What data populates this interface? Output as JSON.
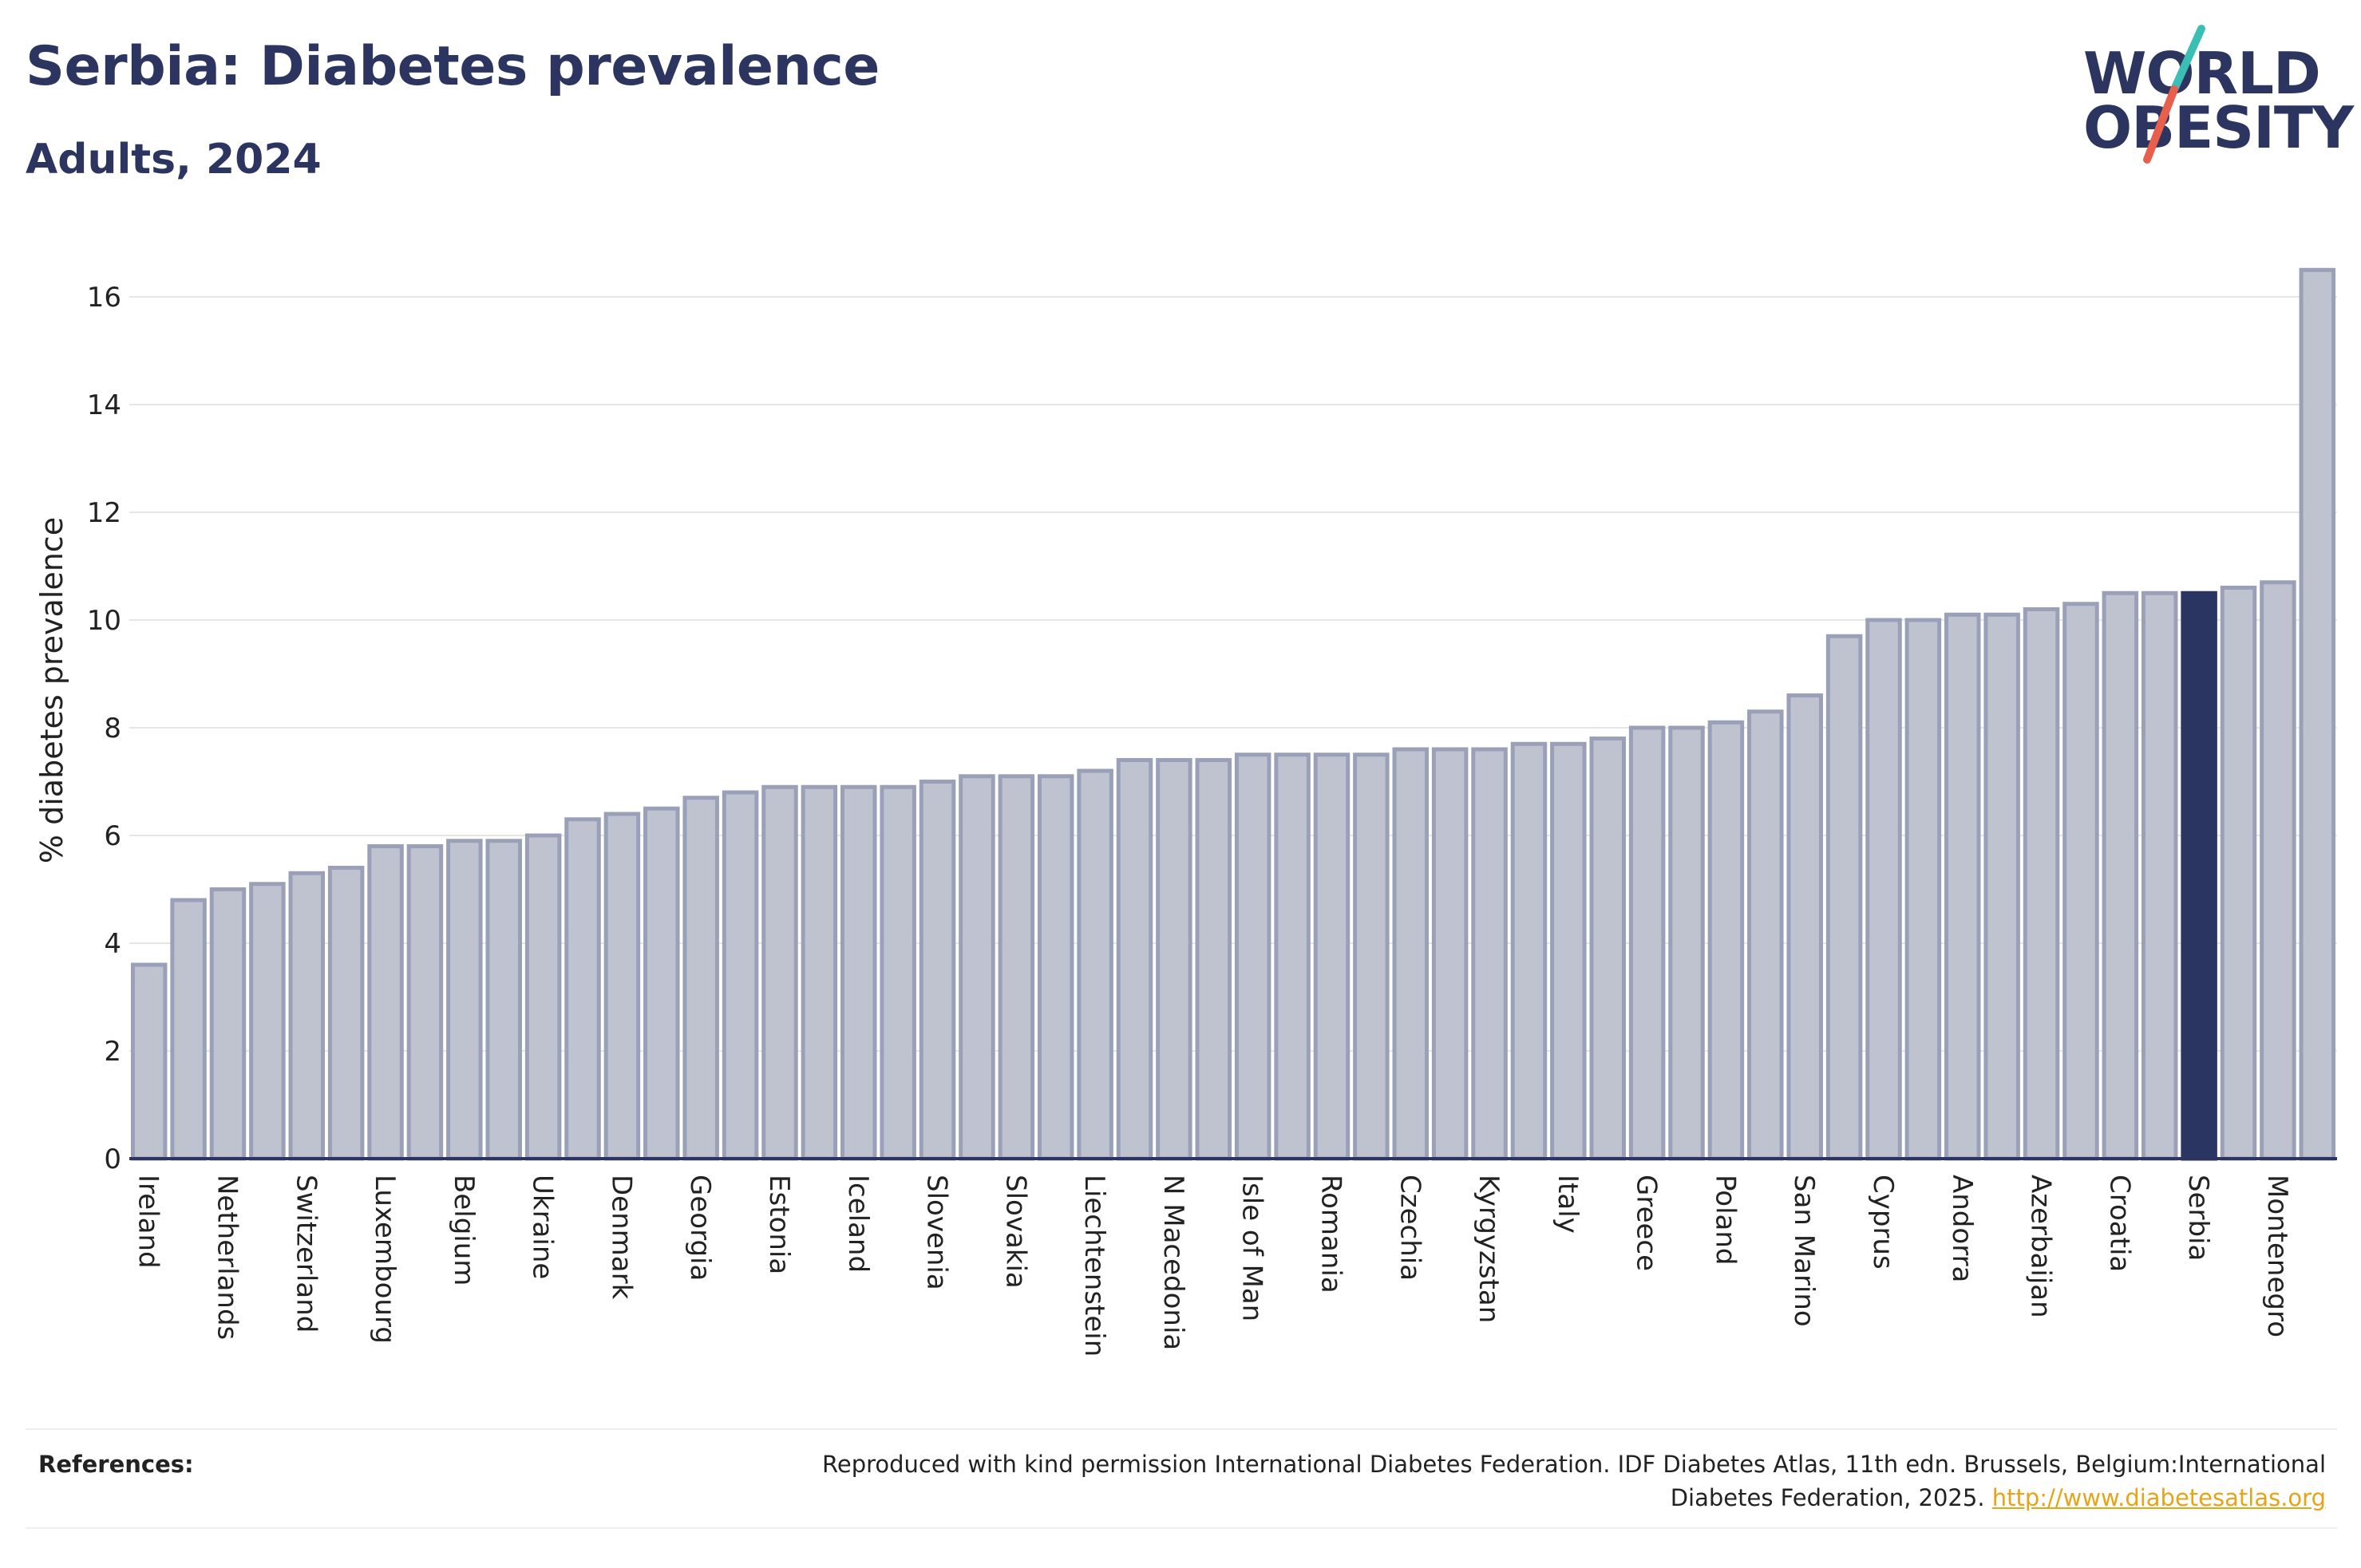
{
  "header": {
    "title": "Serbia: Diabetes prevalence",
    "subtitle": "Adults, 2024"
  },
  "logo": {
    "line1": "WORLD",
    "line2": "OBESITY",
    "slash_colors": [
      "#3bbfb4",
      "#e8604c"
    ]
  },
  "colors": {
    "bar": "#bfc3d0",
    "bar_border": "#9aa0b8",
    "highlight": "#2b3562",
    "axis": "#2c3560",
    "grid": "#e6e6e6"
  },
  "chart_data": {
    "type": "bar",
    "title": "Serbia: Diabetes prevalence",
    "subtitle": "Adults, 2024",
    "ylabel": "% diabetes prevalence",
    "xlabel": "",
    "ylim": [
      0,
      17
    ],
    "yticks": [
      0,
      2,
      4,
      6,
      8,
      10,
      12,
      14,
      16
    ],
    "grid": true,
    "highlight": "Serbia",
    "labeled_categories": [
      "Ireland",
      "Netherlands",
      "Switzerland",
      "Luxembourg",
      "Belgium",
      "Ukraine",
      "Denmark",
      "Georgia",
      "Estonia",
      "Iceland",
      "Slovenia",
      "Slovakia",
      "Liechtenstein",
      "N Macedonia",
      "Isle of Man",
      "Romania",
      "Czechia",
      "Kyrgyzstan",
      "Italy",
      "Greece",
      "Poland",
      "San Marino",
      "Cyprus",
      "Andorra",
      "Azerbaijan",
      "Croatia",
      "Serbia",
      "Montenegro"
    ],
    "label_every": 2,
    "values": [
      3.6,
      4.8,
      5.0,
      5.1,
      5.3,
      5.4,
      5.8,
      5.8,
      5.9,
      5.9,
      6.0,
      6.3,
      6.4,
      6.5,
      6.7,
      6.8,
      6.9,
      6.9,
      6.9,
      6.9,
      7.0,
      7.1,
      7.1,
      7.1,
      7.2,
      7.4,
      7.4,
      7.4,
      7.5,
      7.5,
      7.5,
      7.5,
      7.6,
      7.6,
      7.6,
      7.7,
      7.7,
      7.8,
      8.0,
      8.0,
      8.1,
      8.3,
      8.6,
      9.7,
      10.0,
      10.0,
      10.1,
      10.1,
      10.2,
      10.3,
      10.5,
      10.5,
      10.5,
      10.6,
      10.7,
      16.5
    ],
    "highlight_index": 52
  },
  "footer": {
    "references_label": "References:",
    "references_text_line1": "Reproduced with kind permission International Diabetes Federation. IDF Diabetes Atlas, 11th edn. Brussels, Belgium:International",
    "references_text_line2": "Diabetes Federation, 2025.",
    "references_link": "http://www.diabetesatlas.org"
  }
}
